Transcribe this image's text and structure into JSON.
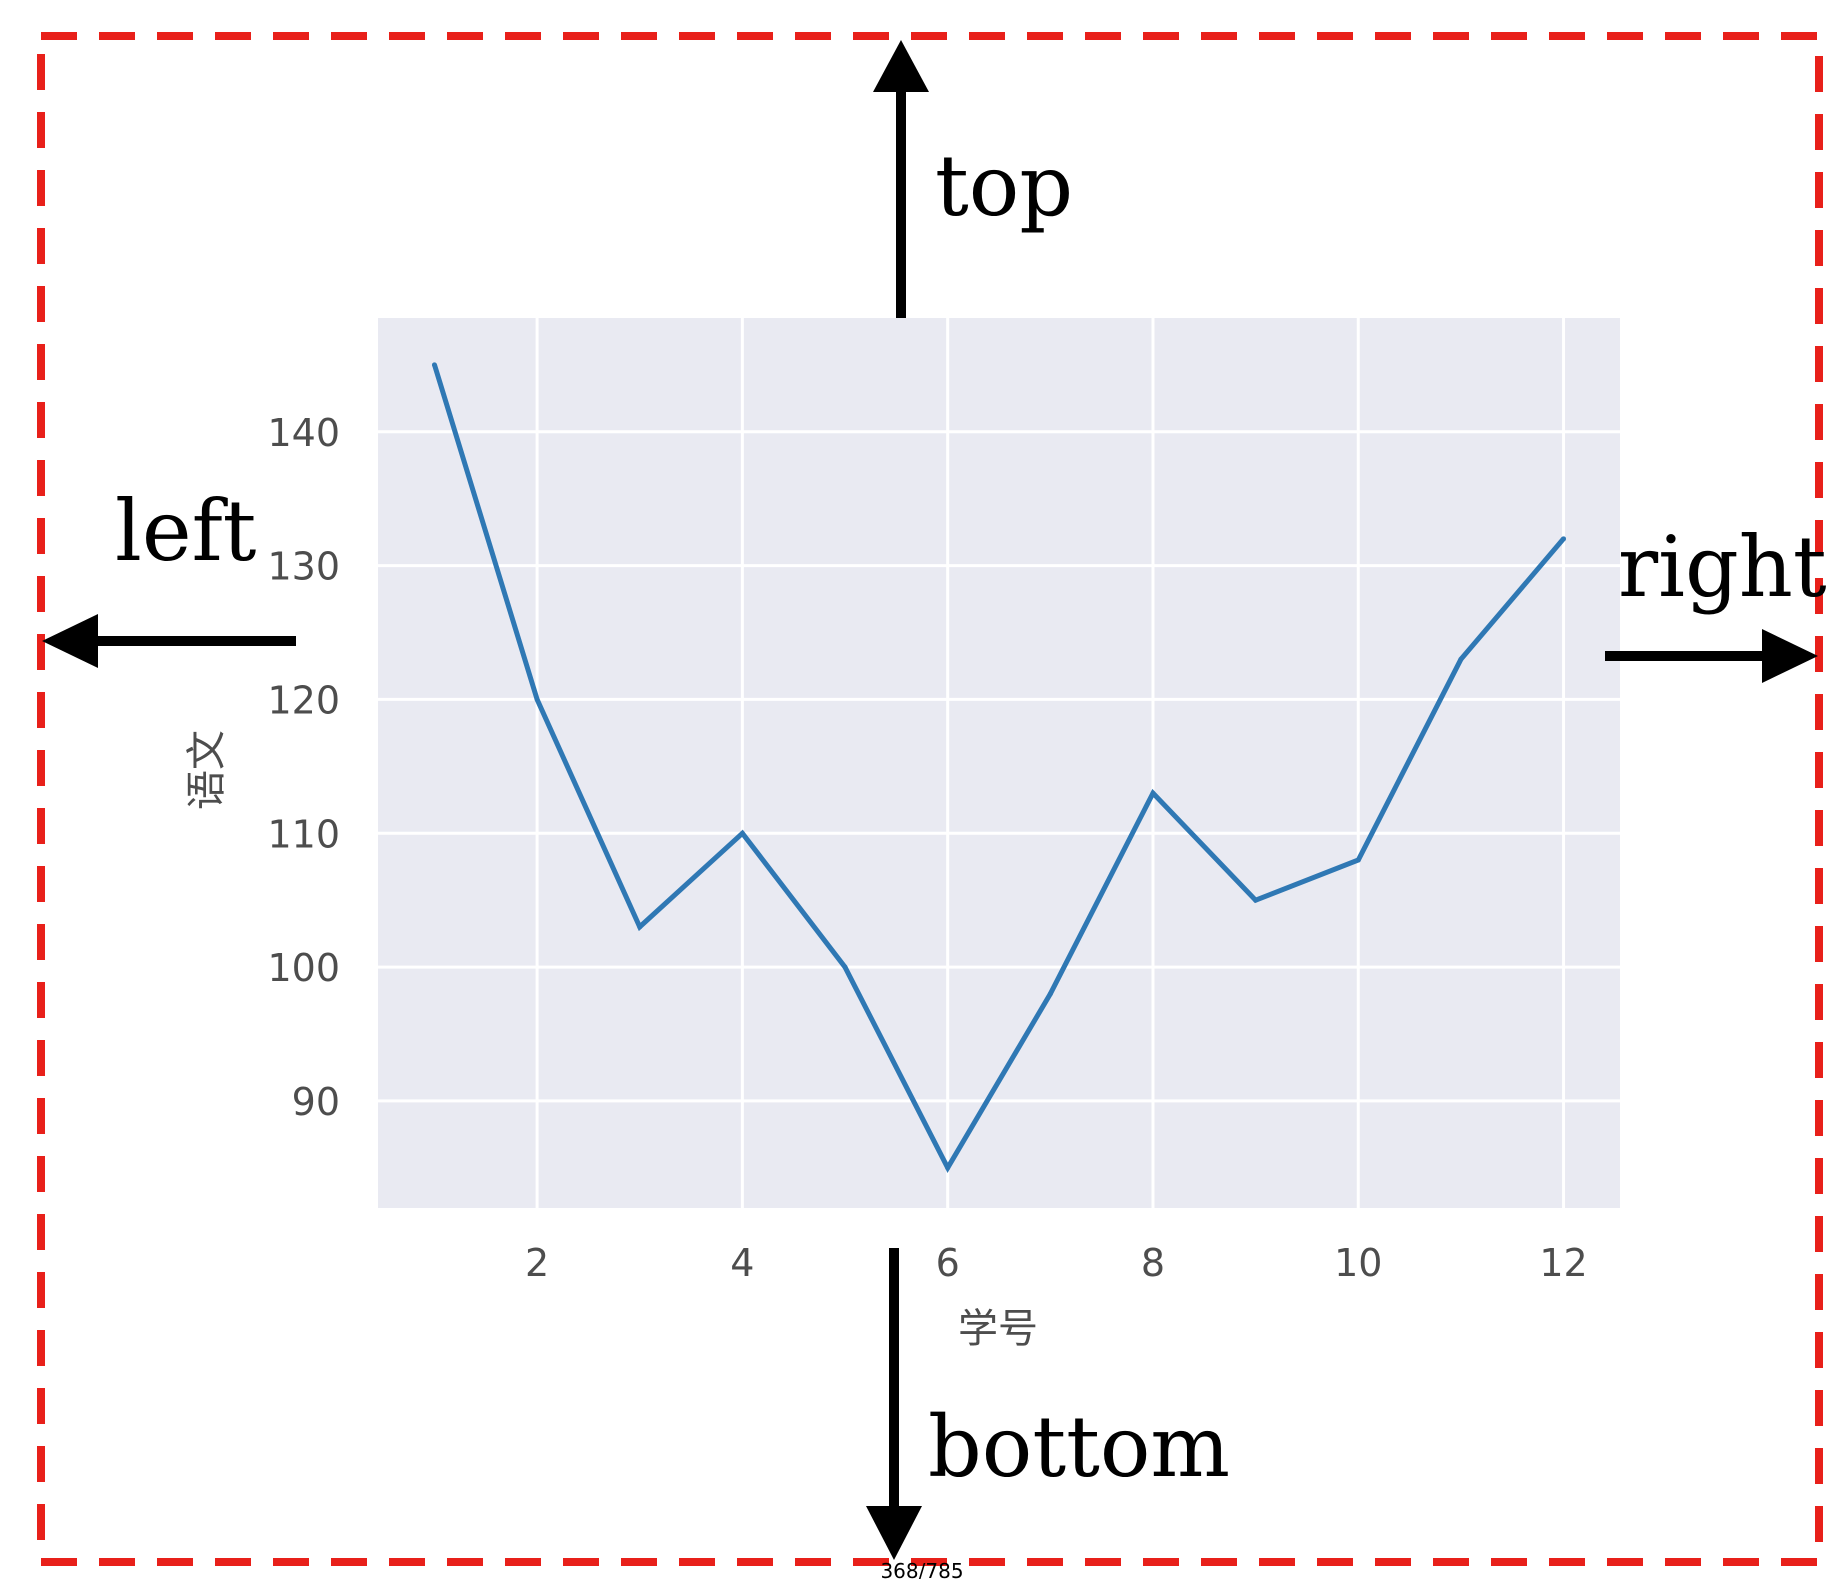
{
  "margin_labels": {
    "top": "top",
    "bottom": "bottom",
    "left": "left",
    "right": "right"
  },
  "page_footer": "368/785",
  "colors": {
    "frame_dashes": "#e8201a",
    "plot_background": "#e9eaf2",
    "grid": "#ffffff",
    "line": "#2f78b4",
    "arrows": "#000000"
  },
  "chart_data": {
    "type": "line",
    "title": "",
    "xlabel": "学号",
    "ylabel": "语文",
    "x_ticks": [
      2,
      4,
      6,
      8,
      10,
      12
    ],
    "y_ticks": [
      90,
      100,
      110,
      120,
      130,
      140
    ],
    "xlim": [
      0.45,
      12.55
    ],
    "ylim": [
      82,
      148.5
    ],
    "grid": true,
    "series": [
      {
        "x": [
          1,
          2,
          3,
          4,
          5,
          6,
          7,
          8,
          9,
          10,
          11,
          12
        ],
        "values": [
          145,
          120,
          103,
          110,
          100,
          85,
          98,
          113,
          105,
          108,
          123,
          132
        ]
      }
    ]
  }
}
